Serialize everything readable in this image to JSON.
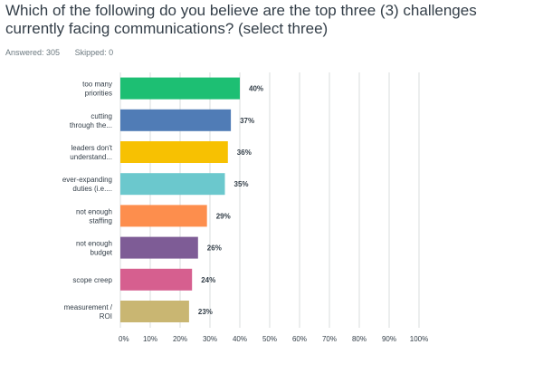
{
  "question": {
    "title": "Which of the following do you believe are the top three (3) challenges currently facing communications? (select three)"
  },
  "stats": {
    "answered": "Answered: 305",
    "skipped": "Skipped: 0"
  },
  "chart_data": {
    "type": "bar",
    "orientation": "horizontal",
    "categories": [
      [
        "too many",
        "priorities"
      ],
      [
        "cutting",
        "through the..."
      ],
      [
        "leaders don't",
        "understand..."
      ],
      [
        "ever-expanding",
        "duties (i.e...."
      ],
      [
        "not enough",
        "staffing"
      ],
      [
        "not enough",
        "budget"
      ],
      [
        "scope creep"
      ],
      [
        "measurement /",
        "ROI"
      ]
    ],
    "values": [
      40,
      37,
      36,
      35,
      29,
      26,
      24,
      23
    ],
    "value_labels": [
      "40%",
      "37%",
      "36%",
      "35%",
      "29%",
      "26%",
      "24%",
      "23%"
    ],
    "colors": [
      "#1dbf73",
      "#507cb6",
      "#f7c102",
      "#6bc8cd",
      "#fd8e4d",
      "#7e5c96",
      "#d65f8f",
      "#c9b672"
    ],
    "xlim": [
      0,
      100
    ],
    "xticks": [
      "0%",
      "10%",
      "20%",
      "30%",
      "40%",
      "50%",
      "60%",
      "70%",
      "80%",
      "90%",
      "100%"
    ],
    "grid": true
  }
}
